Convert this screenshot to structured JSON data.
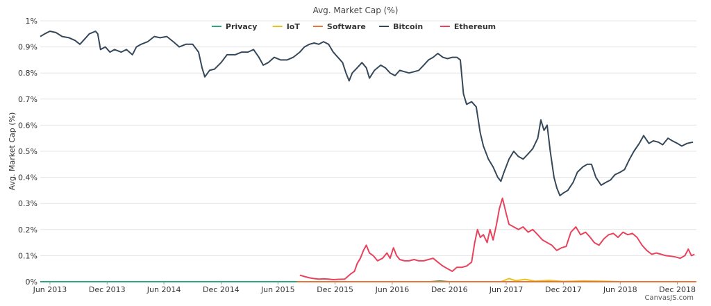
{
  "chart_data": {
    "type": "line",
    "title": "Avg. Market Cap (%)",
    "ylabel": "Avg. Market Cap (%)",
    "xlabel": "",
    "ylim": [
      0,
      1
    ],
    "yticks": [
      "0%",
      "0.1%",
      "0.2%",
      "0.3%",
      "0.4%",
      "0.5%",
      "0.6%",
      "0.7%",
      "0.8%",
      "0.9%",
      "1%"
    ],
    "xlim": [
      "2013-05-01",
      "2019-01-31"
    ],
    "xticks": [
      {
        "date": "2013-06-01",
        "label": "Jun 2013"
      },
      {
        "date": "2013-12-01",
        "label": "Dec 2013"
      },
      {
        "date": "2014-06-01",
        "label": "Jun 2014"
      },
      {
        "date": "2014-12-01",
        "label": "Dec 2014"
      },
      {
        "date": "2015-06-01",
        "label": "Jun 2015"
      },
      {
        "date": "2015-12-01",
        "label": "Dec 2015"
      },
      {
        "date": "2016-06-01",
        "label": "Jun 2016"
      },
      {
        "date": "2016-12-01",
        "label": "Dec 2016"
      },
      {
        "date": "2017-06-01",
        "label": "Jun 2017"
      },
      {
        "date": "2017-12-01",
        "label": "Dec 2017"
      },
      {
        "date": "2018-06-01",
        "label": "Jun 2018"
      },
      {
        "date": "2018-12-01",
        "label": "Dec 2018"
      }
    ],
    "legend_position": "top-center",
    "grid": "horizontal",
    "credit": "CanvasJS.com",
    "series": [
      {
        "name": "Privacy",
        "color": "#2ca67a",
        "points": [
          [
            "2013-05-01",
            0
          ],
          [
            "2016-10-01",
            0
          ],
          [
            "2016-11-01",
            0.003
          ],
          [
            "2016-12-01",
            0
          ],
          [
            "2019-01-31",
            0
          ]
        ]
      },
      {
        "name": "IoT",
        "color": "#e8c31f",
        "points": [
          [
            "2017-05-15",
            0
          ],
          [
            "2017-06-10",
            0.012
          ],
          [
            "2017-07-01",
            0.004
          ],
          [
            "2017-08-01",
            0.009
          ],
          [
            "2017-09-01",
            0.002
          ],
          [
            "2017-10-15",
            0.005
          ],
          [
            "2017-12-01",
            0.001
          ],
          [
            "2018-02-01",
            0.003
          ],
          [
            "2018-04-01",
            0.002
          ],
          [
            "2018-06-01",
            0
          ],
          [
            "2019-01-31",
            0
          ]
        ]
      },
      {
        "name": "Software",
        "color": "#e8743b",
        "points": [
          [
            "2015-08-01",
            0
          ],
          [
            "2019-01-31",
            0
          ]
        ]
      },
      {
        "name": "Bitcoin",
        "color": "#35485a",
        "points": [
          [
            "2013-05-01",
            0.94
          ],
          [
            "2013-05-15",
            0.95
          ],
          [
            "2013-06-01",
            0.96
          ],
          [
            "2013-06-20",
            0.955
          ],
          [
            "2013-07-10",
            0.94
          ],
          [
            "2013-08-01",
            0.935
          ],
          [
            "2013-08-20",
            0.925
          ],
          [
            "2013-09-05",
            0.91
          ],
          [
            "2013-09-20",
            0.93
          ],
          [
            "2013-10-05",
            0.95
          ],
          [
            "2013-10-25",
            0.96
          ],
          [
            "2013-11-01",
            0.95
          ],
          [
            "2013-11-10",
            0.89
          ],
          [
            "2013-11-25",
            0.9
          ],
          [
            "2013-12-10",
            0.88
          ],
          [
            "2013-12-25",
            0.89
          ],
          [
            "2014-01-15",
            0.88
          ],
          [
            "2014-02-01",
            0.89
          ],
          [
            "2014-02-20",
            0.87
          ],
          [
            "2014-03-05",
            0.9
          ],
          [
            "2014-03-20",
            0.91
          ],
          [
            "2014-04-10",
            0.92
          ],
          [
            "2014-05-01",
            0.94
          ],
          [
            "2014-05-20",
            0.935
          ],
          [
            "2014-06-10",
            0.94
          ],
          [
            "2014-07-01",
            0.92
          ],
          [
            "2014-07-20",
            0.9
          ],
          [
            "2014-08-10",
            0.91
          ],
          [
            "2014-09-01",
            0.91
          ],
          [
            "2014-09-20",
            0.88
          ],
          [
            "2014-10-01",
            0.82
          ],
          [
            "2014-10-10",
            0.785
          ],
          [
            "2014-10-25",
            0.81
          ],
          [
            "2014-11-10",
            0.815
          ],
          [
            "2014-12-01",
            0.84
          ],
          [
            "2014-12-20",
            0.87
          ],
          [
            "2015-01-15",
            0.87
          ],
          [
            "2015-02-05",
            0.88
          ],
          [
            "2015-02-25",
            0.88
          ],
          [
            "2015-03-15",
            0.89
          ],
          [
            "2015-04-01",
            0.86
          ],
          [
            "2015-04-15",
            0.83
          ],
          [
            "2015-05-01",
            0.84
          ],
          [
            "2015-05-20",
            0.86
          ],
          [
            "2015-06-10",
            0.85
          ],
          [
            "2015-06-30",
            0.85
          ],
          [
            "2015-07-20",
            0.86
          ],
          [
            "2015-08-10",
            0.88
          ],
          [
            "2015-08-25",
            0.9
          ],
          [
            "2015-09-10",
            0.91
          ],
          [
            "2015-09-25",
            0.915
          ],
          [
            "2015-10-10",
            0.91
          ],
          [
            "2015-10-25",
            0.92
          ],
          [
            "2015-11-10",
            0.91
          ],
          [
            "2015-11-25",
            0.88
          ],
          [
            "2015-12-10",
            0.86
          ],
          [
            "2015-12-25",
            0.84
          ],
          [
            "2016-01-05",
            0.8
          ],
          [
            "2016-01-15",
            0.77
          ],
          [
            "2016-01-25",
            0.8
          ],
          [
            "2016-02-10",
            0.82
          ],
          [
            "2016-02-25",
            0.84
          ],
          [
            "2016-03-10",
            0.82
          ],
          [
            "2016-03-20",
            0.78
          ],
          [
            "2016-04-05",
            0.81
          ],
          [
            "2016-04-25",
            0.83
          ],
          [
            "2016-05-10",
            0.82
          ],
          [
            "2016-05-25",
            0.8
          ],
          [
            "2016-06-10",
            0.79
          ],
          [
            "2016-06-25",
            0.81
          ],
          [
            "2016-07-10",
            0.805
          ],
          [
            "2016-07-25",
            0.8
          ],
          [
            "2016-08-10",
            0.805
          ],
          [
            "2016-08-25",
            0.81
          ],
          [
            "2016-09-10",
            0.83
          ],
          [
            "2016-09-25",
            0.85
          ],
          [
            "2016-10-10",
            0.86
          ],
          [
            "2016-10-25",
            0.875
          ],
          [
            "2016-11-10",
            0.86
          ],
          [
            "2016-11-25",
            0.855
          ],
          [
            "2016-12-10",
            0.86
          ],
          [
            "2016-12-25",
            0.86
          ],
          [
            "2017-01-05",
            0.85
          ],
          [
            "2017-01-15",
            0.72
          ],
          [
            "2017-01-25",
            0.68
          ],
          [
            "2017-02-10",
            0.69
          ],
          [
            "2017-02-25",
            0.67
          ],
          [
            "2017-03-10",
            0.57
          ],
          [
            "2017-03-20",
            0.52
          ],
          [
            "2017-04-05",
            0.47
          ],
          [
            "2017-04-20",
            0.44
          ],
          [
            "2017-05-05",
            0.4
          ],
          [
            "2017-05-15",
            0.385
          ],
          [
            "2017-05-25",
            0.42
          ],
          [
            "2017-06-10",
            0.47
          ],
          [
            "2017-06-25",
            0.5
          ],
          [
            "2017-07-10",
            0.48
          ],
          [
            "2017-07-25",
            0.47
          ],
          [
            "2017-08-10",
            0.49
          ],
          [
            "2017-08-25",
            0.51
          ],
          [
            "2017-09-10",
            0.55
          ],
          [
            "2017-09-20",
            0.62
          ],
          [
            "2017-09-30",
            0.58
          ],
          [
            "2017-10-10",
            0.6
          ],
          [
            "2017-10-20",
            0.5
          ],
          [
            "2017-11-01",
            0.4
          ],
          [
            "2017-11-10",
            0.36
          ],
          [
            "2017-11-20",
            0.33
          ],
          [
            "2017-12-01",
            0.34
          ],
          [
            "2017-12-15",
            0.35
          ],
          [
            "2018-01-01",
            0.38
          ],
          [
            "2018-01-15",
            0.42
          ],
          [
            "2018-02-01",
            0.44
          ],
          [
            "2018-02-15",
            0.45
          ],
          [
            "2018-03-01",
            0.45
          ],
          [
            "2018-03-15",
            0.4
          ],
          [
            "2018-04-01",
            0.37
          ],
          [
            "2018-04-15",
            0.38
          ],
          [
            "2018-05-01",
            0.39
          ],
          [
            "2018-05-15",
            0.41
          ],
          [
            "2018-06-01",
            0.42
          ],
          [
            "2018-06-15",
            0.43
          ],
          [
            "2018-07-01",
            0.47
          ],
          [
            "2018-07-15",
            0.5
          ],
          [
            "2018-08-01",
            0.53
          ],
          [
            "2018-08-15",
            0.56
          ],
          [
            "2018-09-01",
            0.53
          ],
          [
            "2018-09-15",
            0.54
          ],
          [
            "2018-10-01",
            0.535
          ],
          [
            "2018-10-15",
            0.525
          ],
          [
            "2018-11-01",
            0.55
          ],
          [
            "2018-11-15",
            0.54
          ],
          [
            "2018-12-01",
            0.53
          ],
          [
            "2018-12-15",
            0.52
          ],
          [
            "2019-01-01",
            0.53
          ],
          [
            "2019-01-20",
            0.535
          ]
        ]
      },
      {
        "name": "Ethereum",
        "color": "#e8435d",
        "points": [
          [
            "2015-08-10",
            0.025
          ],
          [
            "2015-08-25",
            0.02
          ],
          [
            "2015-09-10",
            0.015
          ],
          [
            "2015-09-25",
            0.012
          ],
          [
            "2015-10-10",
            0.01
          ],
          [
            "2015-10-25",
            0.011
          ],
          [
            "2015-11-10",
            0.01
          ],
          [
            "2015-11-25",
            0.008
          ],
          [
            "2015-12-10",
            0.009
          ],
          [
            "2016-01-01",
            0.01
          ],
          [
            "2016-01-20",
            0.03
          ],
          [
            "2016-02-01",
            0.04
          ],
          [
            "2016-02-10",
            0.07
          ],
          [
            "2016-02-20",
            0.09
          ],
          [
            "2016-03-01",
            0.12
          ],
          [
            "2016-03-10",
            0.14
          ],
          [
            "2016-03-20",
            0.11
          ],
          [
            "2016-04-01",
            0.1
          ],
          [
            "2016-04-15",
            0.08
          ],
          [
            "2016-05-01",
            0.09
          ],
          [
            "2016-05-15",
            0.11
          ],
          [
            "2016-05-25",
            0.09
          ],
          [
            "2016-06-05",
            0.13
          ],
          [
            "2016-06-15",
            0.1
          ],
          [
            "2016-06-25",
            0.085
          ],
          [
            "2016-07-10",
            0.08
          ],
          [
            "2016-07-25",
            0.08
          ],
          [
            "2016-08-10",
            0.085
          ],
          [
            "2016-08-25",
            0.08
          ],
          [
            "2016-09-10",
            0.08
          ],
          [
            "2016-09-25",
            0.085
          ],
          [
            "2016-10-10",
            0.09
          ],
          [
            "2016-10-25",
            0.075
          ],
          [
            "2016-11-10",
            0.06
          ],
          [
            "2016-11-25",
            0.05
          ],
          [
            "2016-12-10",
            0.04
          ],
          [
            "2016-12-25",
            0.055
          ],
          [
            "2017-01-10",
            0.055
          ],
          [
            "2017-01-25",
            0.06
          ],
          [
            "2017-02-10",
            0.075
          ],
          [
            "2017-02-20",
            0.15
          ],
          [
            "2017-03-01",
            0.2
          ],
          [
            "2017-03-10",
            0.17
          ],
          [
            "2017-03-20",
            0.18
          ],
          [
            "2017-04-01",
            0.15
          ],
          [
            "2017-04-10",
            0.2
          ],
          [
            "2017-04-20",
            0.16
          ],
          [
            "2017-05-01",
            0.22
          ],
          [
            "2017-05-10",
            0.28
          ],
          [
            "2017-05-20",
            0.32
          ],
          [
            "2017-06-01",
            0.26
          ],
          [
            "2017-06-10",
            0.22
          ],
          [
            "2017-06-25",
            0.21
          ],
          [
            "2017-07-10",
            0.2
          ],
          [
            "2017-07-25",
            0.21
          ],
          [
            "2017-08-10",
            0.19
          ],
          [
            "2017-08-25",
            0.2
          ],
          [
            "2017-09-10",
            0.18
          ],
          [
            "2017-09-25",
            0.16
          ],
          [
            "2017-10-10",
            0.15
          ],
          [
            "2017-10-25",
            0.14
          ],
          [
            "2017-11-10",
            0.12
          ],
          [
            "2017-11-25",
            0.13
          ],
          [
            "2017-12-10",
            0.135
          ],
          [
            "2017-12-25",
            0.19
          ],
          [
            "2018-01-10",
            0.21
          ],
          [
            "2018-01-25",
            0.18
          ],
          [
            "2018-02-10",
            0.19
          ],
          [
            "2018-02-25",
            0.17
          ],
          [
            "2018-03-10",
            0.15
          ],
          [
            "2018-03-25",
            0.14
          ],
          [
            "2018-04-10",
            0.165
          ],
          [
            "2018-04-25",
            0.18
          ],
          [
            "2018-05-10",
            0.185
          ],
          [
            "2018-05-25",
            0.17
          ],
          [
            "2018-06-10",
            0.19
          ],
          [
            "2018-06-25",
            0.18
          ],
          [
            "2018-07-10",
            0.185
          ],
          [
            "2018-07-25",
            0.17
          ],
          [
            "2018-08-10",
            0.14
          ],
          [
            "2018-08-25",
            0.12
          ],
          [
            "2018-09-10",
            0.105
          ],
          [
            "2018-09-25",
            0.11
          ],
          [
            "2018-10-10",
            0.105
          ],
          [
            "2018-10-25",
            0.1
          ],
          [
            "2018-11-10",
            0.098
          ],
          [
            "2018-11-25",
            0.095
          ],
          [
            "2018-12-10",
            0.09
          ],
          [
            "2018-12-25",
            0.1
          ],
          [
            "2019-01-05",
            0.125
          ],
          [
            "2019-01-15",
            0.1
          ],
          [
            "2019-01-25",
            0.105
          ]
        ]
      }
    ]
  }
}
